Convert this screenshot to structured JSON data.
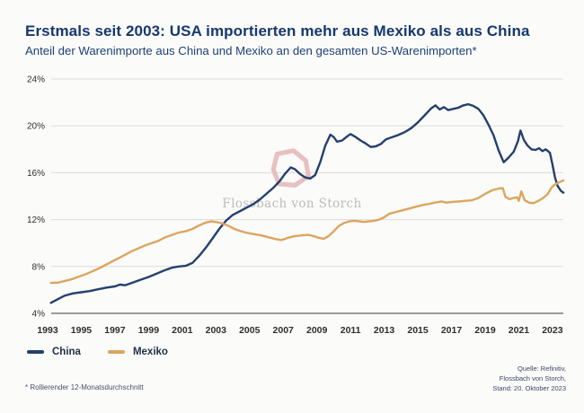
{
  "chart_data": {
    "type": "line",
    "title": "Erstmals seit 2003: USA importierten mehr aus Mexiko als aus China",
    "subtitle": "Anteil der Warenimporte aus China und Mexiko an den gesamten US-Warenimporten*",
    "xlabel": "",
    "ylabel": "",
    "xlim": [
      1993,
      2023.7
    ],
    "ylim": [
      4,
      24
    ],
    "grid": "horizontal",
    "legend_position": "bottom-left",
    "y_ticks": [
      {
        "value": 24,
        "label": "24%"
      },
      {
        "value": 20,
        "label": "20%"
      },
      {
        "value": 16,
        "label": "16%"
      },
      {
        "value": 12,
        "label": "12%"
      },
      {
        "value": 8,
        "label": "8%"
      },
      {
        "value": 4,
        "label": "4%"
      }
    ],
    "x_ticks": [
      1993,
      1995,
      1997,
      1999,
      2001,
      2003,
      2005,
      2007,
      2009,
      2011,
      2013,
      2015,
      2017,
      2019,
      2021,
      2023
    ],
    "series": [
      {
        "name": "China",
        "color": "#24406e",
        "points": [
          [
            1993.2,
            4.9
          ],
          [
            1993.6,
            5.2
          ],
          [
            1994.0,
            5.5
          ],
          [
            1994.5,
            5.7
          ],
          [
            1995.0,
            5.8
          ],
          [
            1995.5,
            5.9
          ],
          [
            1996.0,
            6.05
          ],
          [
            1996.5,
            6.2
          ],
          [
            1997.0,
            6.3
          ],
          [
            1997.3,
            6.45
          ],
          [
            1997.6,
            6.4
          ],
          [
            1998.0,
            6.6
          ],
          [
            1998.5,
            6.85
          ],
          [
            1999.0,
            7.1
          ],
          [
            1999.5,
            7.4
          ],
          [
            2000.0,
            7.7
          ],
          [
            2000.4,
            7.9
          ],
          [
            2000.8,
            8.0
          ],
          [
            2001.2,
            8.05
          ],
          [
            2001.6,
            8.3
          ],
          [
            2002.0,
            8.9
          ],
          [
            2002.4,
            9.6
          ],
          [
            2002.8,
            10.4
          ],
          [
            2003.2,
            11.2
          ],
          [
            2003.6,
            11.9
          ],
          [
            2004.0,
            12.4
          ],
          [
            2004.4,
            12.7
          ],
          [
            2004.8,
            13.0
          ],
          [
            2005.2,
            13.3
          ],
          [
            2005.6,
            13.7
          ],
          [
            2006.0,
            14.2
          ],
          [
            2006.4,
            14.7
          ],
          [
            2006.8,
            15.3
          ],
          [
            2007.1,
            15.9
          ],
          [
            2007.45,
            16.45
          ],
          [
            2007.7,
            16.3
          ],
          [
            2008.0,
            15.9
          ],
          [
            2008.3,
            15.6
          ],
          [
            2008.6,
            15.5
          ],
          [
            2008.9,
            15.8
          ],
          [
            2009.2,
            16.9
          ],
          [
            2009.5,
            18.3
          ],
          [
            2009.8,
            19.25
          ],
          [
            2010.0,
            19.05
          ],
          [
            2010.2,
            18.65
          ],
          [
            2010.5,
            18.75
          ],
          [
            2010.8,
            19.1
          ],
          [
            2011.0,
            19.3
          ],
          [
            2011.3,
            19.05
          ],
          [
            2011.6,
            18.75
          ],
          [
            2011.9,
            18.5
          ],
          [
            2012.2,
            18.2
          ],
          [
            2012.5,
            18.25
          ],
          [
            2012.8,
            18.45
          ],
          [
            2013.1,
            18.85
          ],
          [
            2013.4,
            19.0
          ],
          [
            2013.8,
            19.2
          ],
          [
            2014.2,
            19.45
          ],
          [
            2014.6,
            19.8
          ],
          [
            2015.0,
            20.3
          ],
          [
            2015.4,
            20.9
          ],
          [
            2015.8,
            21.5
          ],
          [
            2016.05,
            21.75
          ],
          [
            2016.3,
            21.4
          ],
          [
            2016.55,
            21.6
          ],
          [
            2016.8,
            21.35
          ],
          [
            2017.1,
            21.45
          ],
          [
            2017.4,
            21.55
          ],
          [
            2017.7,
            21.75
          ],
          [
            2018.0,
            21.85
          ],
          [
            2018.3,
            21.7
          ],
          [
            2018.6,
            21.45
          ],
          [
            2018.9,
            20.9
          ],
          [
            2019.2,
            20.1
          ],
          [
            2019.5,
            19.2
          ],
          [
            2019.8,
            17.9
          ],
          [
            2020.1,
            16.9
          ],
          [
            2020.4,
            17.3
          ],
          [
            2020.7,
            17.8
          ],
          [
            2020.95,
            18.7
          ],
          [
            2021.1,
            19.6
          ],
          [
            2021.3,
            18.8
          ],
          [
            2021.5,
            18.35
          ],
          [
            2021.75,
            18.0
          ],
          [
            2022.0,
            17.95
          ],
          [
            2022.2,
            18.1
          ],
          [
            2022.4,
            17.85
          ],
          [
            2022.6,
            18.0
          ],
          [
            2022.85,
            17.7
          ],
          [
            2023.0,
            16.7
          ],
          [
            2023.15,
            15.6
          ],
          [
            2023.3,
            14.9
          ],
          [
            2023.5,
            14.45
          ],
          [
            2023.65,
            14.3
          ]
        ]
      },
      {
        "name": "Mexiko",
        "color": "#dda55e",
        "points": [
          [
            1993.2,
            6.6
          ],
          [
            1993.6,
            6.62
          ],
          [
            1994.0,
            6.75
          ],
          [
            1994.4,
            6.9
          ],
          [
            1994.8,
            7.1
          ],
          [
            1995.2,
            7.3
          ],
          [
            1995.6,
            7.55
          ],
          [
            1996.0,
            7.8
          ],
          [
            1996.4,
            8.1
          ],
          [
            1996.8,
            8.4
          ],
          [
            1997.2,
            8.7
          ],
          [
            1997.6,
            9.0
          ],
          [
            1998.0,
            9.3
          ],
          [
            1998.4,
            9.55
          ],
          [
            1998.8,
            9.8
          ],
          [
            1999.2,
            10.0
          ],
          [
            1999.6,
            10.2
          ],
          [
            2000.0,
            10.5
          ],
          [
            2000.4,
            10.7
          ],
          [
            2000.8,
            10.9
          ],
          [
            2001.2,
            11.0
          ],
          [
            2001.6,
            11.2
          ],
          [
            2002.0,
            11.5
          ],
          [
            2002.4,
            11.75
          ],
          [
            2002.7,
            11.85
          ],
          [
            2003.0,
            11.8
          ],
          [
            2003.3,
            11.7
          ],
          [
            2003.7,
            11.5
          ],
          [
            2004.1,
            11.2
          ],
          [
            2004.5,
            11.0
          ],
          [
            2004.9,
            10.85
          ],
          [
            2005.3,
            10.75
          ],
          [
            2005.7,
            10.65
          ],
          [
            2006.1,
            10.5
          ],
          [
            2006.5,
            10.35
          ],
          [
            2006.9,
            10.25
          ],
          [
            2007.3,
            10.45
          ],
          [
            2007.7,
            10.6
          ],
          [
            2008.1,
            10.65
          ],
          [
            2008.5,
            10.7
          ],
          [
            2008.8,
            10.6
          ],
          [
            2009.1,
            10.45
          ],
          [
            2009.4,
            10.35
          ],
          [
            2009.7,
            10.6
          ],
          [
            2010.0,
            11.0
          ],
          [
            2010.3,
            11.45
          ],
          [
            2010.6,
            11.7
          ],
          [
            2010.9,
            11.85
          ],
          [
            2011.2,
            11.9
          ],
          [
            2011.5,
            11.85
          ],
          [
            2011.8,
            11.8
          ],
          [
            2012.1,
            11.85
          ],
          [
            2012.4,
            11.9
          ],
          [
            2012.7,
            12.0
          ],
          [
            2013.0,
            12.2
          ],
          [
            2013.3,
            12.5
          ],
          [
            2013.7,
            12.65
          ],
          [
            2014.1,
            12.8
          ],
          [
            2014.5,
            12.95
          ],
          [
            2014.9,
            13.1
          ],
          [
            2015.3,
            13.25
          ],
          [
            2015.7,
            13.35
          ],
          [
            2016.0,
            13.45
          ],
          [
            2016.4,
            13.55
          ],
          [
            2016.7,
            13.45
          ],
          [
            2017.0,
            13.5
          ],
          [
            2017.4,
            13.55
          ],
          [
            2017.8,
            13.6
          ],
          [
            2018.2,
            13.65
          ],
          [
            2018.6,
            13.85
          ],
          [
            2019.0,
            14.2
          ],
          [
            2019.4,
            14.5
          ],
          [
            2019.8,
            14.65
          ],
          [
            2020.05,
            14.7
          ],
          [
            2020.2,
            13.95
          ],
          [
            2020.45,
            13.75
          ],
          [
            2020.7,
            13.85
          ],
          [
            2020.9,
            13.9
          ],
          [
            2021.0,
            13.6
          ],
          [
            2021.15,
            14.4
          ],
          [
            2021.35,
            13.65
          ],
          [
            2021.6,
            13.45
          ],
          [
            2021.85,
            13.4
          ],
          [
            2022.1,
            13.55
          ],
          [
            2022.4,
            13.8
          ],
          [
            2022.7,
            14.15
          ],
          [
            2022.95,
            14.75
          ],
          [
            2023.1,
            14.95
          ],
          [
            2023.3,
            15.1
          ],
          [
            2023.5,
            15.25
          ],
          [
            2023.65,
            15.35
          ]
        ]
      }
    ],
    "annotation": {
      "shape": "hand-drawn-circle",
      "year": 2007.42,
      "value": 16.35,
      "color": "#e5b1b3"
    }
  },
  "watermark": "Flossbach von Storch",
  "footnote": "* Rollierender 12-Monatsdurchschnitt",
  "source": {
    "lines": [
      "Quelle: Refinitiv,",
      "Flossbach von Storch,",
      "Stand: 20. Oktober 2023"
    ]
  },
  "colors": {
    "background": "#fbfbfa",
    "title": "#16386e",
    "gridline": "#dcdcdc",
    "axis_line": "#606060",
    "tick_text": "#2e2e2e",
    "watermark": "#bcbcbc"
  }
}
